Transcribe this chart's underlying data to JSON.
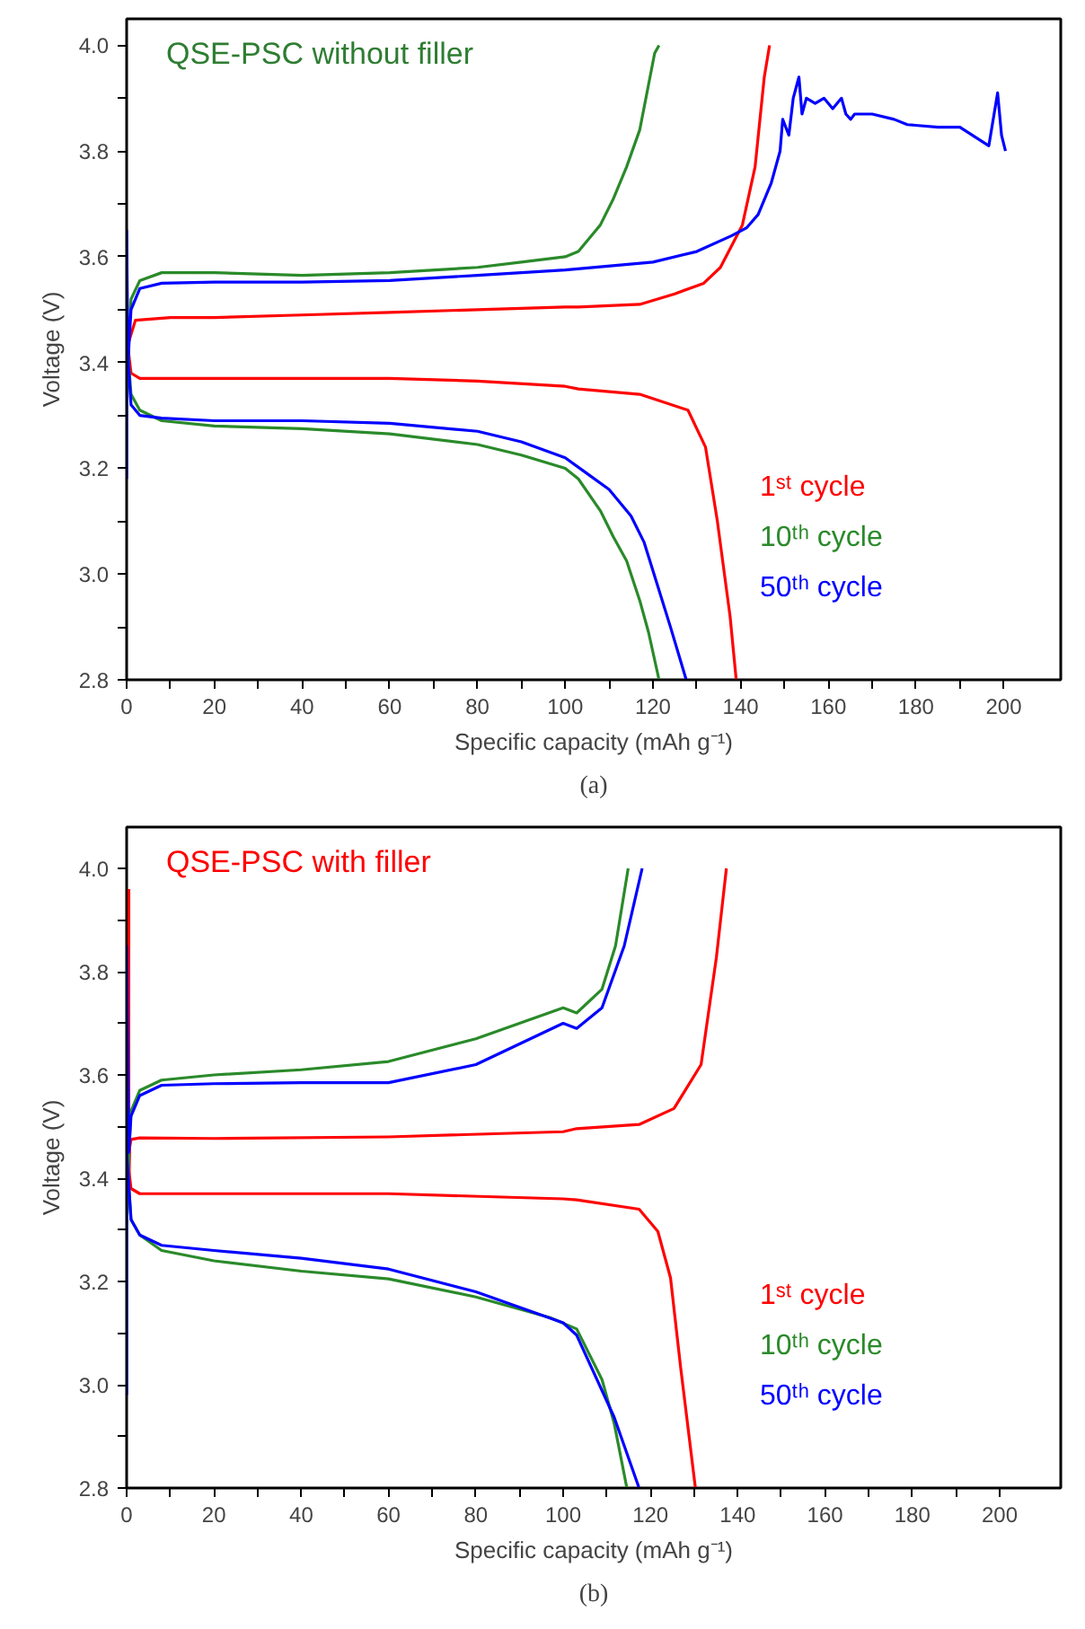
{
  "chart_data": [
    {
      "type": "line",
      "title": "QSE-PSC without filler",
      "xlabel": "Specific capacity (mAh g⁻¹)",
      "ylabel": "Voltage (V)",
      "annotations": [
        "(a)"
      ],
      "xlim": [
        0,
        213
      ],
      "ylim": [
        2.8,
        4.05
      ],
      "xticks": [
        0,
        {
          "value": 10,
          "label": null
        },
        20,
        {
          "value": 30,
          "label": null
        },
        40,
        {
          "value": 50,
          "label": null
        },
        60,
        {
          "value": 70,
          "label": null
        },
        80,
        {
          "value": 90,
          "label": null
        },
        100,
        {
          "value": 110,
          "label": null
        },
        120,
        {
          "value": 130,
          "label": null
        },
        140,
        {
          "value": 150,
          "label": null
        },
        160,
        {
          "value": 170,
          "label": null
        },
        180,
        {
          "value": 190,
          "label": null
        },
        200
      ],
      "yticks": [
        2.8,
        {
          "value": 2.9,
          "label": null
        },
        {
          "value": 3.0,
          "label": "3.0"
        },
        {
          "value": 3.1,
          "label": null
        },
        3.2,
        {
          "value": 3.3,
          "label": null
        },
        3.4,
        {
          "value": 3.5,
          "label": null
        },
        3.6,
        {
          "value": 3.7,
          "label": null
        },
        3.8,
        {
          "value": 3.9,
          "label": null
        },
        {
          "value": 4.0,
          "label": "4.0"
        }
      ],
      "grid": false,
      "legend": "bottom right",
      "series": [
        {
          "name": "1ˢᵗ cycle",
          "color": "#ff0000",
          "x": [
            0,
            0.5,
            2,
            10,
            20,
            40,
            60,
            80,
            100,
            103,
            117,
            125,
            131.6,
            135.4,
            140.4,
            143.3,
            145.4,
            146.6
          ],
          "values": [
            3.4,
            3.44,
            3.48,
            3.485,
            3.485,
            3.49,
            3.495,
            3.5,
            3.505,
            3.505,
            3.51,
            3.53,
            3.55,
            3.58,
            3.66,
            3.77,
            3.94,
            4.0
          ]
        },
        {
          "color": "#ff0000",
          "x": [
            0,
            1,
            3,
            20,
            40,
            60,
            80,
            100,
            103,
            117,
            128,
            132,
            134.7,
            137.6,
            139
          ],
          "values": [
            3.45,
            3.38,
            3.37,
            3.37,
            3.37,
            3.37,
            3.365,
            3.355,
            3.35,
            3.34,
            3.31,
            3.24,
            3.1,
            2.92,
            2.8
          ]
        },
        {
          "name": "10ᵗʰ cycle",
          "color": "#2a8a2a",
          "x": [
            0,
            0.5,
            1,
            3,
            8,
            20,
            40,
            60,
            80,
            90,
            100,
            103,
            108,
            111,
            114,
            117,
            120.4,
            121.4
          ],
          "values": [
            3.3,
            3.45,
            3.52,
            3.555,
            3.57,
            3.57,
            3.565,
            3.57,
            3.58,
            3.59,
            3.6,
            3.61,
            3.66,
            3.71,
            3.77,
            3.84,
            3.985,
            4.0
          ]
        },
        {
          "color": "#2a8a2a",
          "x": [
            0,
            1,
            3,
            8,
            20,
            40,
            60,
            80,
            90,
            100,
            103,
            108,
            111,
            114,
            117,
            119,
            121.4
          ],
          "values": [
            3.45,
            3.34,
            3.31,
            3.29,
            3.28,
            3.275,
            3.265,
            3.245,
            3.225,
            3.2,
            3.18,
            3.12,
            3.07,
            3.025,
            2.95,
            2.89,
            2.8
          ]
        },
        {
          "name": "50ᵗʰ cycle",
          "color": "#0000ff",
          "x": [
            0,
            0,
            0.3,
            1,
            3,
            8,
            20,
            40,
            60,
            80,
            100,
            120,
            130,
            138,
            141.4,
            144,
            147,
            149,
            149.6,
            151,
            152,
            153.3,
            154,
            155,
            157,
            159,
            161,
            163,
            164,
            165.1,
            166,
            170,
            175,
            178,
            185,
            190,
            196.6,
            198.6,
            199.5,
            200.4
          ],
          "values": [
            3.18,
            3.65,
            3.4,
            3.5,
            3.54,
            3.55,
            3.552,
            3.552,
            3.555,
            3.565,
            3.575,
            3.59,
            3.61,
            3.64,
            3.655,
            3.68,
            3.74,
            3.8,
            3.86,
            3.83,
            3.9,
            3.94,
            3.87,
            3.9,
            3.89,
            3.9,
            3.88,
            3.9,
            3.87,
            3.86,
            3.87,
            3.87,
            3.86,
            3.85,
            3.845,
            3.845,
            3.81,
            3.91,
            3.83,
            3.8
          ]
        },
        {
          "color": "#0000ff",
          "x": [
            0,
            1,
            3,
            8,
            20,
            40,
            60,
            80,
            90,
            100,
            105,
            110,
            115,
            118,
            121,
            124,
            127.6
          ],
          "values": [
            3.45,
            3.32,
            3.3,
            3.295,
            3.29,
            3.29,
            3.285,
            3.27,
            3.25,
            3.22,
            3.19,
            3.16,
            3.11,
            3.06,
            2.98,
            2.9,
            2.8
          ]
        }
      ]
    },
    {
      "type": "line",
      "title": "QSE-PSC with filler",
      "xlabel": "Specific capacity (mAh g⁻¹)",
      "ylabel": "Voltage (V)",
      "annotations": [
        "(b)"
      ],
      "xlim": [
        0,
        214
      ],
      "ylim": [
        2.8,
        4.08
      ],
      "xticks": [
        0,
        {
          "value": 10,
          "label": null
        },
        20,
        {
          "value": 30,
          "label": null
        },
        40,
        {
          "value": 50,
          "label": null
        },
        60,
        {
          "value": 70,
          "label": null
        },
        80,
        {
          "value": 90,
          "label": null
        },
        100,
        {
          "value": 110,
          "label": null
        },
        120,
        {
          "value": 130,
          "label": null
        },
        140,
        {
          "value": 150,
          "label": null
        },
        160,
        {
          "value": 170,
          "label": null
        },
        180,
        {
          "value": 190,
          "label": null
        },
        200
      ],
      "yticks": [
        2.8,
        {
          "value": 2.9,
          "label": null
        },
        {
          "value": 3.0,
          "label": "3.0"
        },
        {
          "value": 3.1,
          "label": null
        },
        3.2,
        {
          "value": 3.3,
          "label": null
        },
        3.4,
        {
          "value": 3.5,
          "label": null
        },
        3.6,
        {
          "value": 3.7,
          "label": null
        },
        3.8,
        {
          "value": 3.9,
          "label": null
        },
        {
          "value": 4.0,
          "label": "4.0"
        }
      ],
      "grid": false,
      "legend": "bottom right",
      "series": [
        {
          "name": "1ˢᵗ cycle",
          "color": "#ff0000",
          "x": [
            0.5,
            0.5,
            0.7,
            1,
            3,
            20,
            60,
            100,
            103.1,
            117.4,
            125.4,
            131.6,
            135.1,
            137.4
          ],
          "values": [
            3.96,
            3.38,
            3.46,
            3.475,
            3.478,
            3.477,
            3.48,
            3.49,
            3.496,
            3.504,
            3.535,
            3.62,
            3.827,
            4.0
          ]
        },
        {
          "color": "#ff0000",
          "x": [
            0,
            1,
            3,
            20,
            60,
            100,
            103.1,
            117.4,
            121.7,
            124.6,
            126.9,
            130.3
          ],
          "values": [
            3.45,
            3.38,
            3.37,
            3.37,
            3.37,
            3.36,
            3.358,
            3.34,
            3.297,
            3.207,
            3.035,
            2.8
          ]
        },
        {
          "name": "10ᵗʰ cycle",
          "color": "#2a8a2a",
          "x": [
            0,
            0.5,
            1,
            3,
            8,
            20,
            40,
            60,
            80,
            100,
            103.1,
            108.9,
            112,
            114.9
          ],
          "values": [
            3.3,
            3.45,
            3.53,
            3.57,
            3.59,
            3.6,
            3.61,
            3.626,
            3.67,
            3.73,
            3.72,
            3.766,
            3.85,
            4.0
          ]
        },
        {
          "color": "#2a8a2a",
          "x": [
            0,
            1,
            3,
            8,
            20,
            40,
            60,
            80,
            97,
            103.1,
            108.9,
            111.7,
            114.6
          ],
          "values": [
            3.45,
            3.32,
            3.29,
            3.26,
            3.24,
            3.22,
            3.205,
            3.17,
            3.13,
            3.108,
            3.01,
            2.925,
            2.8
          ]
        },
        {
          "name": "50ᵗʰ cycle",
          "color": "#0000ff",
          "x": [
            0,
            0,
            0.5,
            1,
            3,
            8,
            20,
            40,
            60,
            80,
            100,
            103.1,
            108.9,
            114,
            118.1
          ],
          "values": [
            2.98,
            3.85,
            3.45,
            3.52,
            3.56,
            3.58,
            3.583,
            3.585,
            3.585,
            3.62,
            3.7,
            3.69,
            3.73,
            3.85,
            4.0
          ]
        },
        {
          "color": "#0000ff",
          "x": [
            0,
            1,
            3,
            8,
            20,
            40,
            60,
            80,
            100,
            103.1,
            111.7,
            117.4
          ],
          "values": [
            3.45,
            3.32,
            3.29,
            3.27,
            3.26,
            3.245,
            3.224,
            3.18,
            3.12,
            3.096,
            2.937,
            2.8
          ]
        }
      ]
    }
  ]
}
